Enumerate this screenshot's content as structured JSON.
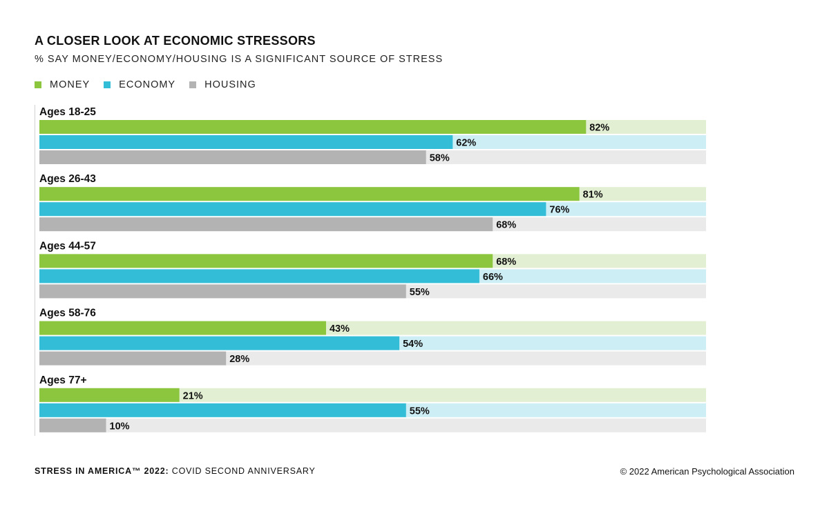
{
  "title": "A CLOSER LOOK AT ECONOMIC STRESSORS",
  "subtitle": "% SAY MONEY/ECONOMY/HOUSING IS A SIGNIFICANT SOURCE OF STRESS",
  "footer": {
    "left_bold": "STRESS IN AMERICA™ 2022:",
    "left_rest": " COVID SECOND ANNIVERSARY",
    "right": "© 2022 American Psychological Association"
  },
  "colors": {
    "money": "#8cc63f",
    "money_track": "#e3efd3",
    "economy": "#33bdd6",
    "economy_track": "#cdeef5",
    "housing": "#b3b3b3",
    "housing_track": "#eaeaea"
  },
  "chart_data": {
    "type": "bar",
    "orientation": "horizontal",
    "categories": [
      "Ages 18-25",
      "Ages 26-43",
      "Ages 44-57",
      "Ages 58-76",
      "Ages 77+"
    ],
    "series": [
      {
        "name": "MONEY",
        "values": [
          82,
          81,
          68,
          43,
          21
        ]
      },
      {
        "name": "ECONOMY",
        "values": [
          62,
          76,
          66,
          54,
          55
        ]
      },
      {
        "name": "HOUSING",
        "values": [
          58,
          68,
          55,
          28,
          10
        ]
      }
    ],
    "value_suffix": "%",
    "xlim": [
      0,
      100
    ],
    "legend": "top-left",
    "grid": false
  }
}
